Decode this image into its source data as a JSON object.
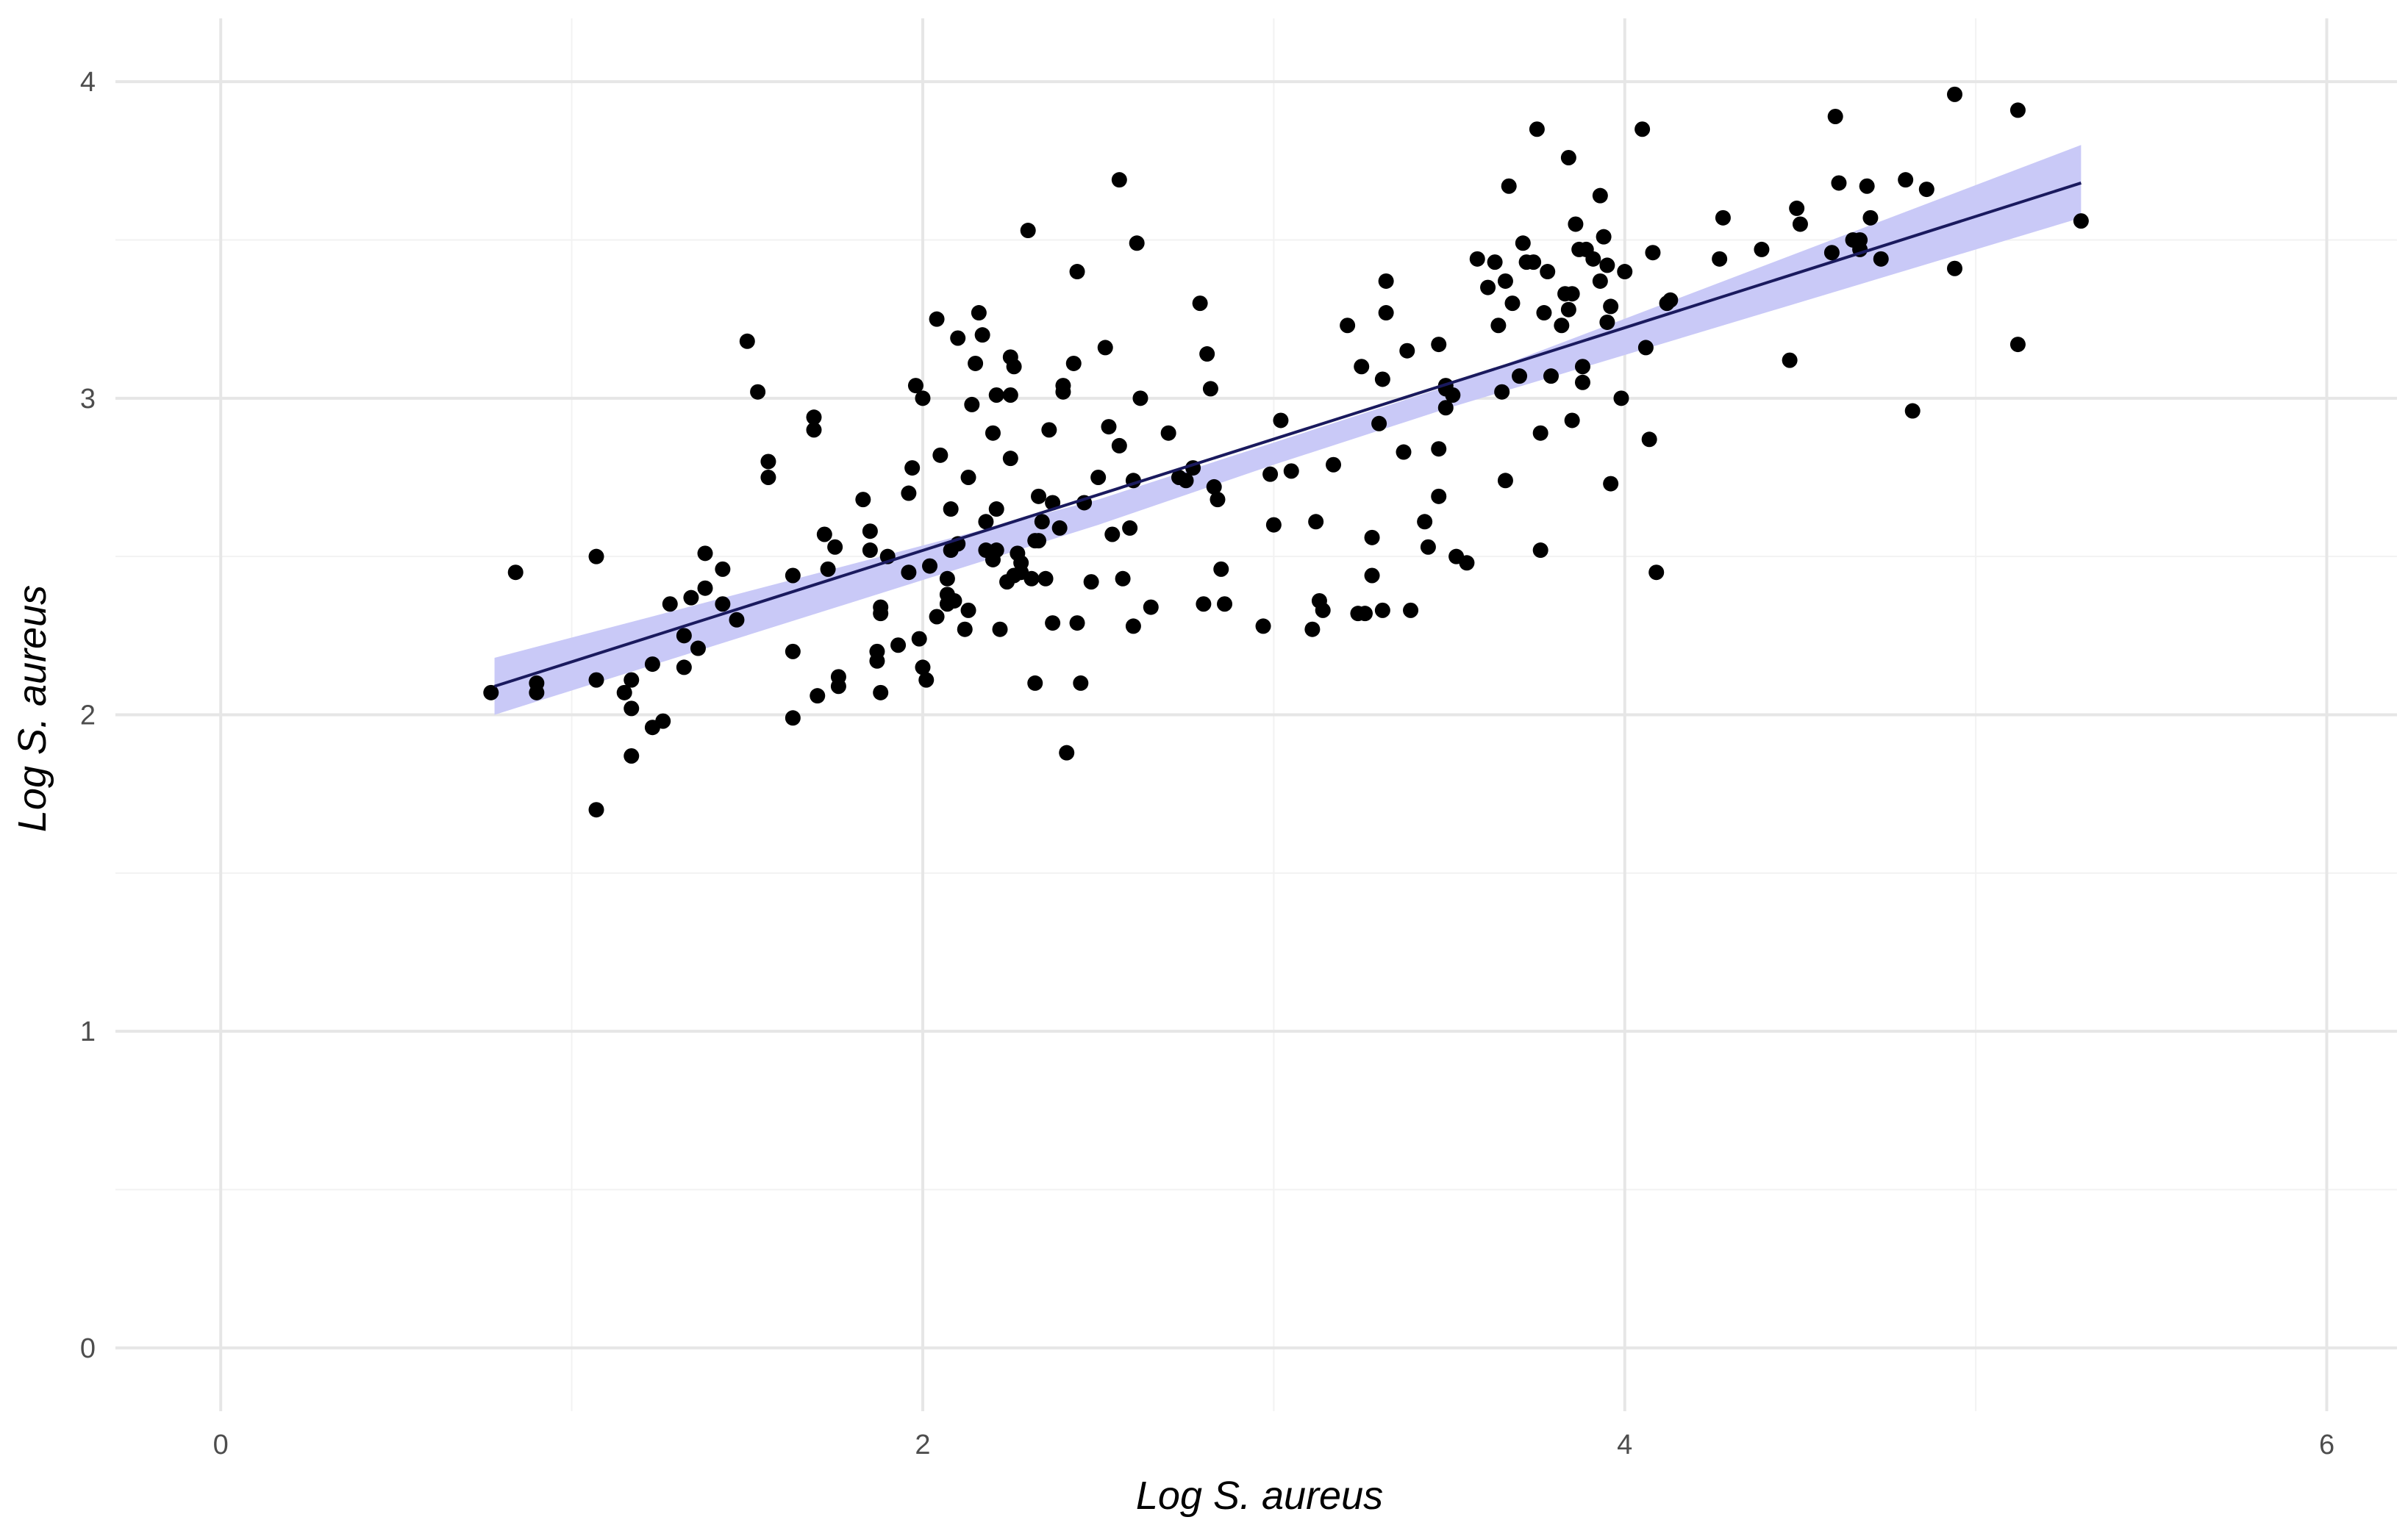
{
  "chart_data": {
    "type": "scatter",
    "title": "",
    "xlabel": "Log S. aureus",
    "ylabel": "Log S. aureus",
    "xlim": [
      -0.3,
      6.2
    ],
    "ylim": [
      -0.2,
      4.2
    ],
    "x_ticks": [
      "0",
      "2",
      "4",
      "6"
    ],
    "x_tick_values": [
      0,
      2,
      4,
      6
    ],
    "y_ticks": [
      "0",
      "1",
      "2",
      "3",
      "4"
    ],
    "y_tick_values": [
      0,
      1,
      2,
      3,
      4
    ],
    "grid": true,
    "colors": {
      "points": "#000000",
      "fit_line": "#1a1a5e",
      "confidence_band": "#c9c9f7",
      "grid": "#ebebeb"
    },
    "fit_line": {
      "x": [
        0.78,
        5.3
      ],
      "y": [
        2.09,
        3.68
      ]
    },
    "confidence_band": {
      "x": [
        0.78,
        2.5,
        3.0,
        3.5,
        5.3
      ],
      "lower": [
        2.0,
        2.6,
        2.79,
        2.97,
        3.57
      ],
      "upper": [
        2.18,
        2.68,
        2.86,
        3.04,
        3.8
      ]
    },
    "points": [
      [
        0.77,
        2.07
      ],
      [
        0.84,
        2.45
      ],
      [
        0.9,
        2.1
      ],
      [
        0.9,
        2.07
      ],
      [
        1.07,
        2.5
      ],
      [
        1.07,
        2.11
      ],
      [
        1.07,
        1.7
      ],
      [
        1.15,
        2.07
      ],
      [
        1.17,
        2.02
      ],
      [
        1.17,
        1.87
      ],
      [
        1.17,
        2.11
      ],
      [
        1.23,
        2.16
      ],
      [
        1.23,
        1.96
      ],
      [
        1.26,
        1.98
      ],
      [
        1.28,
        2.35
      ],
      [
        1.32,
        2.15
      ],
      [
        1.32,
        2.25
      ],
      [
        1.34,
        2.37
      ],
      [
        1.36,
        2.21
      ],
      [
        1.38,
        2.4
      ],
      [
        1.38,
        2.51
      ],
      [
        1.43,
        2.46
      ],
      [
        1.43,
        2.35
      ],
      [
        1.47,
        2.3
      ],
      [
        1.5,
        3.18
      ],
      [
        1.53,
        3.02
      ],
      [
        1.56,
        2.8
      ],
      [
        1.56,
        2.75
      ],
      [
        1.63,
        2.2
      ],
      [
        1.63,
        1.99
      ],
      [
        1.63,
        2.44
      ],
      [
        1.69,
        2.94
      ],
      [
        1.69,
        2.9
      ],
      [
        1.7,
        2.06
      ],
      [
        1.72,
        2.57
      ],
      [
        1.73,
        2.46
      ],
      [
        1.75,
        2.53
      ],
      [
        1.76,
        2.09
      ],
      [
        1.76,
        2.12
      ],
      [
        1.83,
        2.68
      ],
      [
        1.85,
        2.58
      ],
      [
        1.85,
        2.52
      ],
      [
        1.87,
        2.2
      ],
      [
        1.87,
        2.17
      ],
      [
        1.88,
        2.07
      ],
      [
        1.88,
        2.34
      ],
      [
        1.88,
        2.32
      ],
      [
        1.9,
        2.5
      ],
      [
        1.93,
        2.22
      ],
      [
        1.96,
        2.7
      ],
      [
        1.96,
        2.45
      ],
      [
        1.97,
        2.78
      ],
      [
        1.98,
        3.04
      ],
      [
        1.99,
        2.24
      ],
      [
        2.0,
        3.0
      ],
      [
        2.0,
        2.15
      ],
      [
        2.01,
        2.11
      ],
      [
        2.02,
        2.47
      ],
      [
        2.04,
        3.25
      ],
      [
        2.04,
        2.31
      ],
      [
        2.05,
        2.82
      ],
      [
        2.07,
        2.35
      ],
      [
        2.07,
        2.38
      ],
      [
        2.07,
        2.43
      ],
      [
        2.08,
        2.65
      ],
      [
        2.08,
        2.52
      ],
      [
        2.09,
        2.36
      ],
      [
        2.1,
        3.19
      ],
      [
        2.1,
        2.54
      ],
      [
        2.12,
        2.27
      ],
      [
        2.13,
        2.33
      ],
      [
        2.13,
        2.75
      ],
      [
        2.14,
        2.98
      ],
      [
        2.15,
        3.11
      ],
      [
        2.16,
        3.27
      ],
      [
        2.17,
        3.2
      ],
      [
        2.18,
        2.61
      ],
      [
        2.18,
        2.52
      ],
      [
        2.2,
        2.89
      ],
      [
        2.2,
        2.49
      ],
      [
        2.21,
        3.01
      ],
      [
        2.21,
        2.65
      ],
      [
        2.21,
        2.52
      ],
      [
        2.22,
        2.27
      ],
      [
        2.24,
        2.42
      ],
      [
        2.25,
        3.13
      ],
      [
        2.25,
        3.01
      ],
      [
        2.25,
        2.81
      ],
      [
        2.26,
        3.1
      ],
      [
        2.26,
        2.44
      ],
      [
        2.27,
        2.51
      ],
      [
        2.28,
        2.48
      ],
      [
        2.28,
        2.45
      ],
      [
        2.3,
        3.53
      ],
      [
        2.31,
        2.43
      ],
      [
        2.32,
        2.55
      ],
      [
        2.32,
        2.1
      ],
      [
        2.33,
        2.55
      ],
      [
        2.33,
        2.69
      ],
      [
        2.34,
        2.61
      ],
      [
        2.35,
        2.43
      ],
      [
        2.36,
        2.9
      ],
      [
        2.37,
        2.67
      ],
      [
        2.37,
        2.29
      ],
      [
        2.39,
        2.59
      ],
      [
        2.4,
        3.04
      ],
      [
        2.4,
        3.02
      ],
      [
        2.41,
        1.88
      ],
      [
        2.43,
        3.11
      ],
      [
        2.44,
        3.4
      ],
      [
        2.44,
        2.29
      ],
      [
        2.45,
        2.1
      ],
      [
        2.46,
        2.67
      ],
      [
        2.48,
        2.42
      ],
      [
        2.5,
        2.75
      ],
      [
        2.52,
        3.16
      ],
      [
        2.53,
        2.91
      ],
      [
        2.54,
        2.57
      ],
      [
        2.56,
        3.69
      ],
      [
        2.56,
        2.85
      ],
      [
        2.57,
        2.43
      ],
      [
        2.59,
        2.59
      ],
      [
        2.6,
        2.28
      ],
      [
        2.6,
        2.74
      ],
      [
        2.61,
        3.49
      ],
      [
        2.62,
        3.0
      ],
      [
        2.65,
        2.34
      ],
      [
        2.7,
        2.89
      ],
      [
        2.73,
        2.75
      ],
      [
        2.75,
        2.74
      ],
      [
        2.77,
        2.78
      ],
      [
        2.79,
        3.3
      ],
      [
        2.8,
        2.35
      ],
      [
        2.81,
        3.14
      ],
      [
        2.82,
        3.03
      ],
      [
        2.83,
        2.72
      ],
      [
        2.84,
        2.68
      ],
      [
        2.85,
        2.46
      ],
      [
        2.86,
        2.35
      ],
      [
        2.97,
        2.28
      ],
      [
        2.99,
        2.76
      ],
      [
        3.0,
        2.6
      ],
      [
        3.02,
        2.93
      ],
      [
        3.05,
        2.77
      ],
      [
        3.11,
        2.27
      ],
      [
        3.12,
        2.61
      ],
      [
        3.13,
        2.36
      ],
      [
        3.14,
        2.33
      ],
      [
        3.17,
        2.79
      ],
      [
        3.21,
        3.23
      ],
      [
        3.24,
        2.32
      ],
      [
        3.25,
        3.1
      ],
      [
        3.26,
        2.32
      ],
      [
        3.28,
        2.56
      ],
      [
        3.28,
        2.44
      ],
      [
        3.3,
        2.92
      ],
      [
        3.31,
        3.06
      ],
      [
        3.31,
        2.33
      ],
      [
        3.32,
        3.37
      ],
      [
        3.32,
        3.27
      ],
      [
        3.37,
        2.83
      ],
      [
        3.38,
        3.15
      ],
      [
        3.39,
        2.33
      ],
      [
        3.43,
        2.61
      ],
      [
        3.44,
        2.53
      ],
      [
        3.47,
        2.84
      ],
      [
        3.47,
        2.69
      ],
      [
        3.47,
        3.17
      ],
      [
        3.49,
        3.04
      ],
      [
        3.49,
        3.03
      ],
      [
        3.49,
        2.97
      ],
      [
        3.51,
        3.01
      ],
      [
        3.52,
        2.5
      ],
      [
        3.55,
        2.48
      ],
      [
        3.58,
        3.44
      ],
      [
        3.61,
        3.35
      ],
      [
        3.63,
        3.43
      ],
      [
        3.64,
        3.23
      ],
      [
        3.65,
        3.02
      ],
      [
        3.66,
        2.74
      ],
      [
        3.66,
        3.37
      ],
      [
        3.67,
        3.67
      ],
      [
        3.68,
        3.3
      ],
      [
        3.7,
        3.07
      ],
      [
        3.71,
        3.49
      ],
      [
        3.72,
        3.43
      ],
      [
        3.74,
        3.43
      ],
      [
        3.75,
        3.85
      ],
      [
        3.76,
        2.52
      ],
      [
        3.76,
        2.89
      ],
      [
        3.77,
        3.27
      ],
      [
        3.78,
        3.4
      ],
      [
        3.79,
        3.07
      ],
      [
        3.82,
        3.23
      ],
      [
        3.83,
        3.33
      ],
      [
        3.84,
        3.76
      ],
      [
        3.84,
        3.28
      ],
      [
        3.85,
        3.33
      ],
      [
        3.85,
        2.93
      ],
      [
        3.86,
        3.55
      ],
      [
        3.87,
        3.47
      ],
      [
        3.88,
        3.1
      ],
      [
        3.88,
        3.05
      ],
      [
        3.89,
        3.47
      ],
      [
        3.91,
        3.44
      ],
      [
        3.93,
        3.37
      ],
      [
        3.93,
        3.64
      ],
      [
        3.94,
        3.51
      ],
      [
        3.95,
        3.42
      ],
      [
        3.95,
        3.24
      ],
      [
        3.96,
        3.29
      ],
      [
        3.96,
        2.73
      ],
      [
        3.99,
        3.0
      ],
      [
        4.0,
        3.4
      ],
      [
        4.05,
        3.85
      ],
      [
        4.06,
        3.16
      ],
      [
        4.07,
        2.87
      ],
      [
        4.08,
        3.46
      ],
      [
        4.09,
        2.45
      ],
      [
        4.12,
        3.3
      ],
      [
        4.13,
        3.31
      ],
      [
        4.27,
        3.44
      ],
      [
        4.28,
        3.57
      ],
      [
        4.39,
        3.47
      ],
      [
        4.47,
        3.12
      ],
      [
        4.49,
        3.6
      ],
      [
        4.5,
        3.55
      ],
      [
        4.59,
        3.46
      ],
      [
        4.6,
        3.89
      ],
      [
        4.61,
        3.68
      ],
      [
        4.65,
        3.5
      ],
      [
        4.67,
        3.5
      ],
      [
        4.67,
        3.47
      ],
      [
        4.69,
        3.67
      ],
      [
        4.7,
        3.57
      ],
      [
        4.73,
        3.44
      ],
      [
        4.8,
        3.69
      ],
      [
        4.82,
        2.96
      ],
      [
        4.86,
        3.66
      ],
      [
        4.94,
        3.96
      ],
      [
        4.94,
        3.41
      ],
      [
        5.12,
        3.17
      ],
      [
        5.12,
        3.91
      ],
      [
        5.3,
        3.56
      ]
    ]
  }
}
